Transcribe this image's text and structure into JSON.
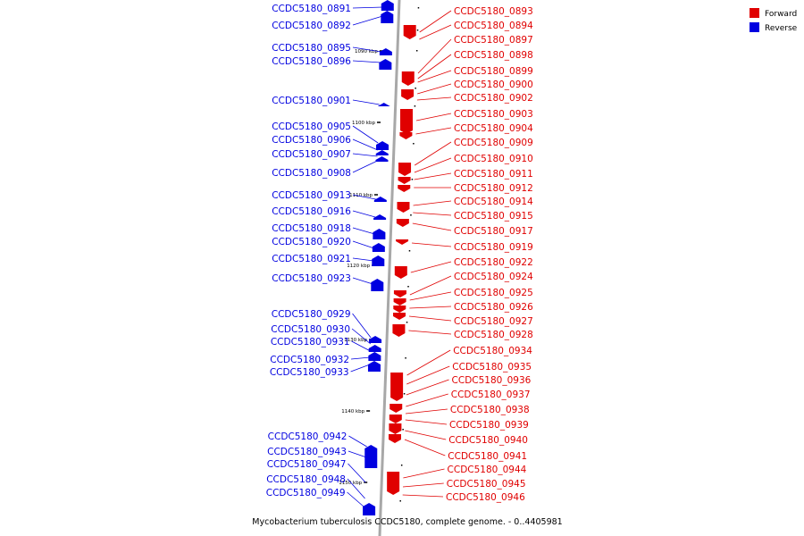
{
  "caption": "Mycobacterium tuberculosis CCDC5180, complete genome. - 0..4405981",
  "colors": {
    "forward": "#e00000",
    "reverse": "#0000e0",
    "backbone": "#a8a8a8"
  },
  "legend": [
    {
      "label": "Forward",
      "color": "#e00000"
    },
    {
      "label": "Reverse",
      "color": "#0000e0"
    }
  ],
  "scale_labels": [
    "1090 kbp",
    "1100 kbp",
    "1110 kbp",
    "1120 kbp",
    "1130 kbp",
    "1140 kbp",
    "1150 kbp"
  ],
  "forward_labels": [
    "CCDC5180_0893",
    "CCDC5180_0894",
    "CCDC5180_0897",
    "CCDC5180_0898",
    "CCDC5180_0899",
    "CCDC5180_0900",
    "CCDC5180_0902",
    "CCDC5180_0903",
    "CCDC5180_0904",
    "CCDC5180_0909",
    "CCDC5180_0910",
    "CCDC5180_0911",
    "CCDC5180_0912",
    "CCDC5180_0914",
    "CCDC5180_0915",
    "CCDC5180_0917",
    "CCDC5180_0919",
    "CCDC5180_0922",
    "CCDC5180_0924",
    "CCDC5180_0925",
    "CCDC5180_0926",
    "CCDC5180_0927",
    "CCDC5180_0928",
    "CCDC5180_0934",
    "CCDC5180_0935",
    "CCDC5180_0936",
    "CCDC5180_0937",
    "CCDC5180_0938",
    "CCDC5180_0939",
    "CCDC5180_0940",
    "CCDC5180_0941",
    "CCDC5180_0944",
    "CCDC5180_0945",
    "CCDC5180_0946"
  ],
  "reverse_labels": [
    "CCDC5180_0891",
    "CCDC5180_0892",
    "CCDC5180_0895",
    "CCDC5180_0896",
    "CCDC5180_0901",
    "CCDC5180_0905",
    "CCDC5180_0906",
    "CCDC5180_0907",
    "CCDC5180_0908",
    "CCDC5180_0913",
    "CCDC5180_0916",
    "CCDC5180_0918",
    "CCDC5180_0920",
    "CCDC5180_0921",
    "CCDC5180_0923",
    "CCDC5180_0929",
    "CCDC5180_0930",
    "CCDC5180_0931",
    "CCDC5180_0932",
    "CCDC5180_0933",
    "CCDC5180_0942",
    "CCDC5180_0943",
    "CCDC5180_0947",
    "CCDC5180_0948",
    "CCDC5180_0949"
  ]
}
